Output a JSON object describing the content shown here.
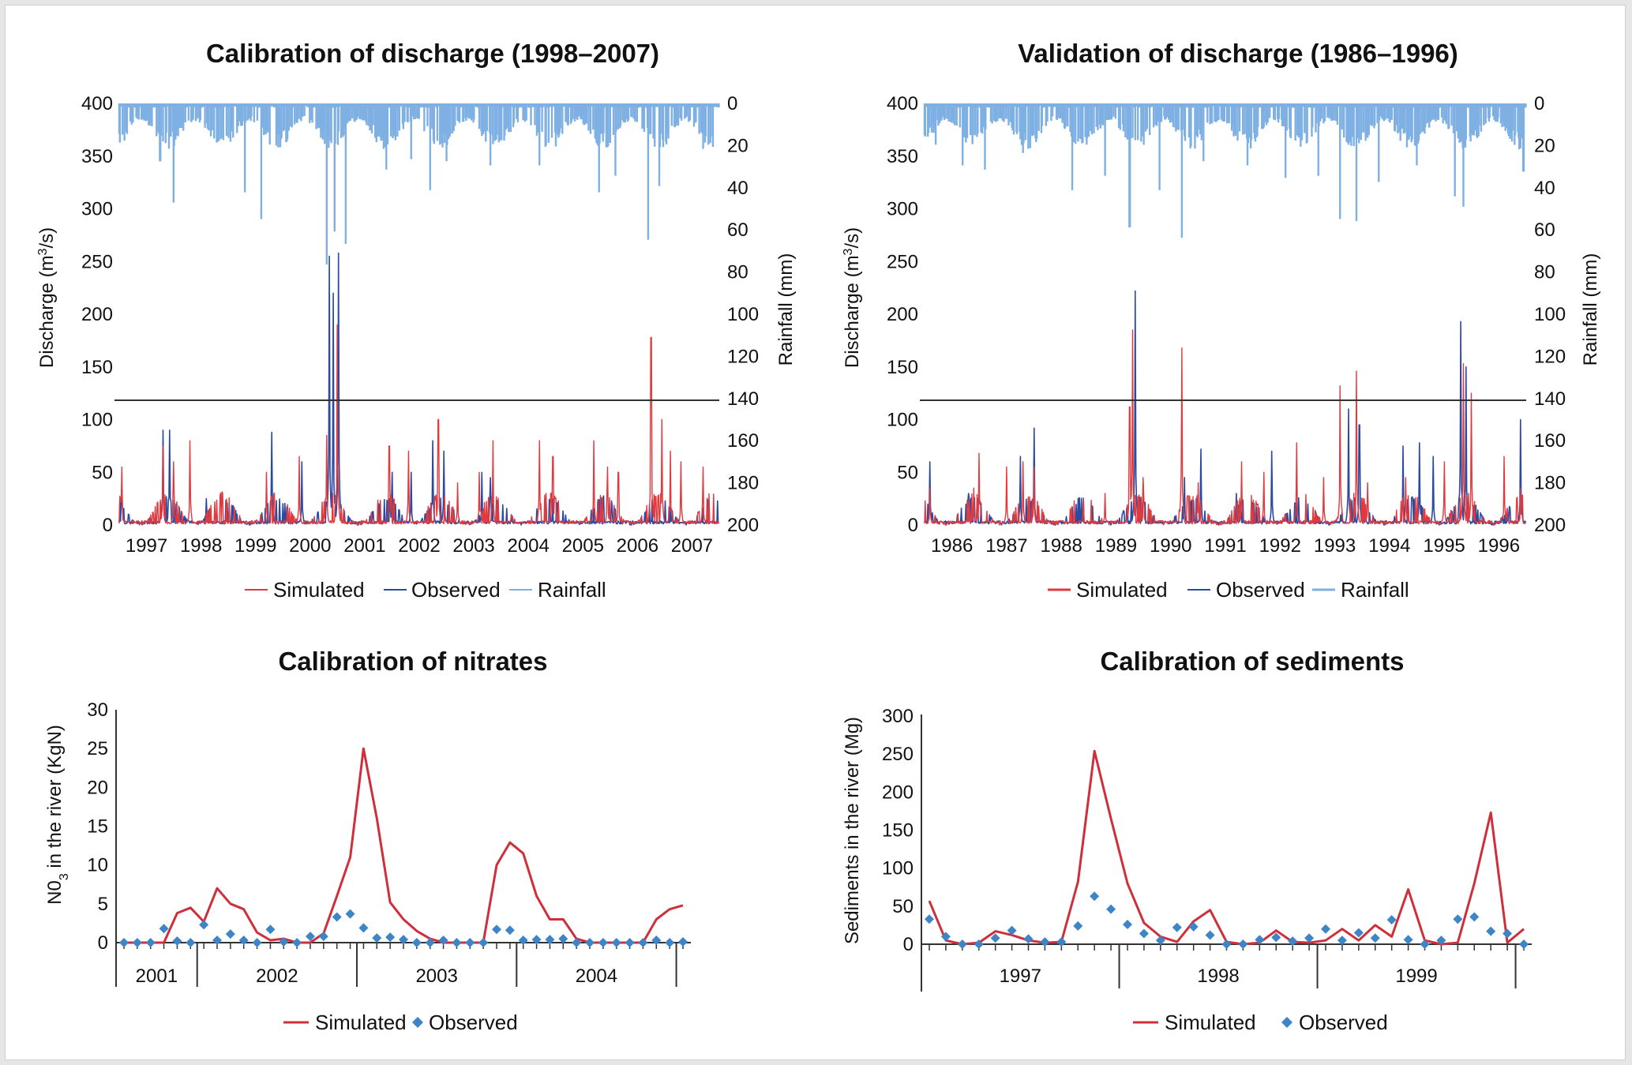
{
  "colors": {
    "simulated": "#e0393e",
    "observed": "#2b4aa0",
    "rainfall": "#7fb0e3",
    "marker": "#3d85c6",
    "axis": "#333333"
  },
  "chart_data": [
    {
      "id": "calib_discharge",
      "type": "line",
      "title": "Calibration of discharge (1998–2007)",
      "ylabel": "Discharge (m³/s)",
      "ylabel_parts": [
        "Discharge (m",
        "3",
        "/s)"
      ],
      "y2label": "Rainfall (mm)",
      "ylim": [
        0,
        400
      ],
      "yticks": [
        "0",
        "50",
        "100",
        "150",
        "200",
        "250",
        "300",
        "350",
        "400"
      ],
      "y2lim": [
        0,
        200
      ],
      "y2_inverted": true,
      "y2ticks": [
        "0",
        "20",
        "40",
        "60",
        "80",
        "100",
        "120",
        "140",
        "160",
        "180",
        "200"
      ],
      "xlim": [
        1996.6,
        2007.6
      ],
      "xticks": [
        "1997",
        "1998",
        "1999",
        "2000",
        "2001",
        "2002",
        "2003",
        "2004",
        "2005",
        "2006",
        "2007"
      ],
      "legend": [
        "Simulated",
        "Observed",
        "Rainfall"
      ],
      "series": [
        {
          "name": "Simulated",
          "peaks": [
            [
              1996.65,
              55
            ],
            [
              1997.4,
              75
            ],
            [
              1997.6,
              60
            ],
            [
              1997.9,
              80
            ],
            [
              1999.3,
              50
            ],
            [
              1999.9,
              65
            ],
            [
              2000.4,
              85
            ],
            [
              2000.6,
              190
            ],
            [
              2001.55,
              75
            ],
            [
              2001.9,
              70
            ],
            [
              2002.45,
              100
            ],
            [
              2002.8,
              40
            ],
            [
              2003.2,
              50
            ],
            [
              2003.45,
              80
            ],
            [
              2004.3,
              80
            ],
            [
              2004.55,
              65
            ],
            [
              2005.3,
              80
            ],
            [
              2005.55,
              55
            ],
            [
              2005.75,
              50
            ],
            [
              2006.35,
              178
            ],
            [
              2006.55,
              100
            ],
            [
              2006.7,
              70
            ],
            [
              2006.9,
              60
            ],
            [
              2007.3,
              55
            ]
          ]
        },
        {
          "name": "Observed",
          "peaks": [
            [
              1996.65,
              35
            ],
            [
              1997.4,
              90
            ],
            [
              1997.52,
              90
            ],
            [
              1998.2,
              25
            ],
            [
              1999.4,
              88
            ],
            [
              1999.95,
              60
            ],
            [
              2000.45,
              255
            ],
            [
              2000.52,
              220
            ],
            [
              2000.62,
              258
            ],
            [
              2001.6,
              50
            ],
            [
              2001.95,
              50
            ],
            [
              2002.35,
              80
            ],
            [
              2002.55,
              70
            ],
            [
              2003.25,
              50
            ],
            [
              2003.4,
              45
            ]
          ]
        },
        {
          "name": "Rainfall",
          "peaks": [
            [
              1996.7,
              18
            ],
            [
              1997.35,
              28
            ],
            [
              1997.6,
              48
            ],
            [
              1998.9,
              43
            ],
            [
              1999.2,
              56
            ],
            [
              2000.4,
              78
            ],
            [
              2000.55,
              62
            ],
            [
              2000.75,
              68
            ],
            [
              2001.5,
              32
            ],
            [
              2001.95,
              27
            ],
            [
              2002.3,
              42
            ],
            [
              2002.6,
              28
            ],
            [
              2003.4,
              30
            ],
            [
              2004.3,
              30
            ],
            [
              2005.4,
              43
            ],
            [
              2005.7,
              35
            ],
            [
              2006.3,
              66
            ],
            [
              2006.5,
              40
            ],
            [
              2007.3,
              22
            ]
          ]
        }
      ]
    },
    {
      "id": "valid_discharge",
      "type": "line",
      "title": "Validation of discharge (1986–1996)",
      "ylabel": "Discharge (m³/s)",
      "ylabel_parts": [
        "Discharge (m",
        "3",
        "/s)"
      ],
      "y2label": "Rainfall (mm)",
      "ylim": [
        0,
        400
      ],
      "yticks": [
        "0",
        "50",
        "100",
        "150",
        "200",
        "250",
        "300",
        "350",
        "400"
      ],
      "y2lim": [
        0,
        200
      ],
      "y2_inverted": true,
      "y2ticks": [
        "0",
        "20",
        "40",
        "60",
        "80",
        "100",
        "120",
        "140",
        "160",
        "180",
        "200"
      ],
      "xlim": [
        1985.6,
        1996.6
      ],
      "xticks": [
        "1986",
        "1987",
        "1988",
        "1989",
        "1990",
        "1991",
        "1992",
        "1993",
        "1994",
        "1995",
        "1996"
      ],
      "legend": [
        "Simulated",
        "Observed",
        "Rainfall"
      ],
      "series": [
        {
          "name": "Simulated",
          "peaks": [
            [
              1985.7,
              35
            ],
            [
              1986.5,
              35
            ],
            [
              1986.6,
              68
            ],
            [
              1987.1,
              55
            ],
            [
              1987.4,
              60
            ],
            [
              1987.6,
              55
            ],
            [
              1988.5,
              25
            ],
            [
              1988.9,
              30
            ],
            [
              1989.35,
              112
            ],
            [
              1989.4,
              185
            ],
            [
              1989.6,
              45
            ],
            [
              1990.3,
              168
            ],
            [
              1990.6,
              40
            ],
            [
              1991.4,
              60
            ],
            [
              1991.8,
              50
            ],
            [
              1992.4,
              78
            ],
            [
              1992.9,
              45
            ],
            [
              1993.2,
              132
            ],
            [
              1993.5,
              146
            ],
            [
              1993.7,
              40
            ],
            [
              1994.4,
              45
            ],
            [
              1995.1,
              60
            ],
            [
              1995.45,
              153
            ],
            [
              1995.6,
              125
            ],
            [
              1996.2,
              65
            ],
            [
              1996.5,
              35
            ]
          ]
        },
        {
          "name": "Observed",
          "peaks": [
            [
              1985.7,
              60
            ],
            [
              1986.4,
              30
            ],
            [
              1987.35,
              65
            ],
            [
              1987.6,
              92
            ],
            [
              1989.45,
              222
            ],
            [
              1989.6,
              40
            ],
            [
              1990.35,
              45
            ],
            [
              1990.65,
              72
            ],
            [
              1991.3,
              30
            ],
            [
              1991.95,
              70
            ],
            [
              1993.35,
              110
            ],
            [
              1993.55,
              95
            ],
            [
              1994.35,
              75
            ],
            [
              1994.65,
              78
            ],
            [
              1994.9,
              65
            ],
            [
              1995.4,
              193
            ],
            [
              1995.5,
              150
            ],
            [
              1996.5,
              100
            ]
          ]
        },
        {
          "name": "Rainfall",
          "peaks": [
            [
              1985.8,
              20
            ],
            [
              1986.3,
              30
            ],
            [
              1986.7,
              32
            ],
            [
              1987.4,
              24
            ],
            [
              1988.3,
              42
            ],
            [
              1988.9,
              35
            ],
            [
              1989.35,
              60
            ],
            [
              1989.9,
              42
            ],
            [
              1990.3,
              65
            ],
            [
              1990.7,
              28
            ],
            [
              1991.5,
              30
            ],
            [
              1992.2,
              36
            ],
            [
              1992.8,
              35
            ],
            [
              1993.2,
              56
            ],
            [
              1993.5,
              57
            ],
            [
              1993.9,
              38
            ],
            [
              1994.6,
              30
            ],
            [
              1995.3,
              45
            ],
            [
              1995.45,
              50
            ],
            [
              1996.55,
              33
            ]
          ]
        }
      ]
    },
    {
      "id": "calib_nitrates",
      "type": "line",
      "title": "Calibration of nitrates",
      "ylabel": "N0₃ in the river (KgN)",
      "ylabel_parts": [
        "N0",
        "3",
        " in the river (KgN)"
      ],
      "ylim": [
        0,
        30
      ],
      "yticks": [
        "0",
        "5",
        "10",
        "15",
        "20",
        "25",
        "30"
      ],
      "xticks": [
        "2001",
        "2002",
        "2003",
        "2004"
      ],
      "year_months": [
        6,
        12,
        12,
        12
      ],
      "legend": [
        "Simulated",
        "Observed"
      ],
      "series": [
        {
          "name": "Simulated",
          "values": [
            0,
            0,
            0,
            0,
            3.8,
            4.5,
            2.7,
            7,
            5,
            4.3,
            1.3,
            0.3,
            0.5,
            0,
            0,
            1.2,
            6,
            11,
            25,
            16,
            5.2,
            3,
            1.5,
            0.5,
            0,
            0,
            0,
            0,
            10,
            12.9,
            11.5,
            6,
            3,
            3,
            0.5,
            0,
            0,
            0,
            0,
            0,
            3,
            4.3,
            4.8
          ]
        },
        {
          "name": "Observed",
          "values": [
            0,
            0,
            0,
            1.8,
            0.2,
            0,
            2.3,
            0.3,
            1.1,
            0.3,
            0,
            1.7,
            0.1,
            0,
            0.8,
            0.8,
            3.3,
            3.7,
            1.9,
            0.6,
            0.7,
            0.4,
            0,
            0,
            0.3,
            0,
            0,
            0,
            1.7,
            1.6,
            0.3,
            0.4,
            0.4,
            0.5,
            0,
            0,
            0,
            0,
            0,
            0,
            0.3,
            0,
            0.1
          ]
        }
      ]
    },
    {
      "id": "calib_sediments",
      "type": "line",
      "title": "Calibration of sediments",
      "ylabel": "Sediments in the river (Mg)",
      "ylim": [
        0,
        300
      ],
      "yticks": [
        "0",
        "50",
        "100",
        "150",
        "200",
        "250",
        "300"
      ],
      "xticks": [
        "1997",
        "1998",
        "1999"
      ],
      "year_months": [
        12,
        12,
        12
      ],
      "legend": [
        "Simulated",
        "Observed"
      ],
      "series": [
        {
          "name": "Simulated",
          "values": [
            57,
            5,
            0,
            2,
            17,
            12,
            5,
            2,
            3,
            82,
            254,
            165,
            80,
            28,
            10,
            3,
            30,
            45,
            3,
            0,
            2,
            18,
            3,
            2,
            5,
            20,
            5,
            25,
            10,
            72,
            5,
            0,
            2,
            80,
            173,
            2,
            20
          ]
        },
        {
          "name": "Observed",
          "values": [
            33,
            10,
            0,
            0,
            8,
            18,
            7,
            3,
            3,
            24,
            63,
            46,
            26,
            14,
            5,
            22,
            23,
            12,
            0,
            0,
            6,
            9,
            4,
            8,
            20,
            5,
            15,
            8,
            32,
            6,
            0,
            5,
            33,
            36,
            17,
            14,
            0
          ]
        }
      ]
    }
  ]
}
